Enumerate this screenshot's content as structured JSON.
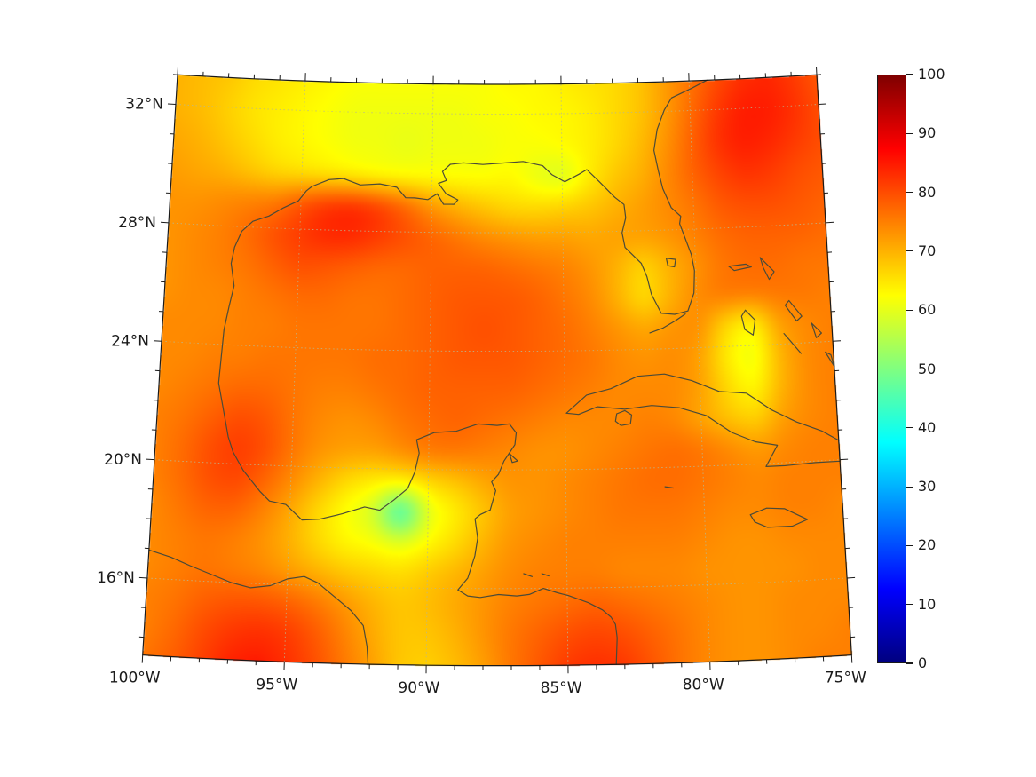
{
  "map": {
    "frame_color": "#1a1a1a",
    "coastline_color": "#4a4a38",
    "graticule_color": "#b8b88f",
    "label_color": "#1a1a1a"
  },
  "chart_data": {
    "type": "heatmap",
    "title": "",
    "region": "Gulf of Mexico and northwest Caribbean",
    "projection": "conic",
    "lon_range": [
      -100,
      -75
    ],
    "lat_range": [
      13.4,
      33.0
    ],
    "x_ticks": {
      "values": [
        -100,
        -95,
        -90,
        -85,
        -80,
        -75
      ],
      "labels": [
        "100°W",
        "95°W",
        "90°W",
        "85°W",
        "80°W",
        "75°W"
      ]
    },
    "y_ticks": {
      "values": [
        16,
        20,
        24,
        28,
        32
      ],
      "labels": [
        "16°N",
        "20°N",
        "24°N",
        "28°N",
        "32°N"
      ]
    },
    "colorbar": {
      "min": 0,
      "max": 100,
      "tick_values": [
        0,
        10,
        20,
        30,
        40,
        50,
        60,
        70,
        80,
        90,
        100
      ],
      "tick_labels": [
        "0",
        "10",
        "20",
        "30",
        "40",
        "50",
        "60",
        "70",
        "80",
        "90",
        "100"
      ],
      "colormap": "jet",
      "stops": [
        [
          "0",
          "#00007f"
        ],
        [
          "0.125",
          "#0000ff"
        ],
        [
          "0.375",
          "#00ffff"
        ],
        [
          "0.5",
          "#80ff80"
        ],
        [
          "0.625",
          "#ffff00"
        ],
        [
          "0.875",
          "#ff0000"
        ],
        [
          "1",
          "#7f0000"
        ]
      ]
    },
    "grid": {
      "cols": 26,
      "rows": 20,
      "lon_min": -100,
      "lon_max": -75,
      "lat_max": 33.0,
      "lat_min": 13.4,
      "values": [
        [
          70,
          69,
          68,
          66,
          65,
          64,
          63,
          62,
          62,
          62,
          62,
          62,
          62,
          63,
          63,
          64,
          65,
          66,
          68,
          72,
          76,
          80,
          83,
          84,
          82,
          79
        ],
        [
          70,
          69,
          67,
          65,
          64,
          63,
          62,
          61,
          61,
          61,
          61,
          61,
          62,
          62,
          63,
          63,
          64,
          66,
          68,
          72,
          77,
          82,
          85,
          85,
          83,
          80
        ],
        [
          71,
          70,
          68,
          66,
          64,
          63,
          62,
          61,
          61,
          60,
          61,
          61,
          61,
          62,
          62,
          63,
          64,
          66,
          69,
          73,
          78,
          83,
          85,
          84,
          82,
          80
        ],
        [
          72,
          71,
          70,
          68,
          66,
          65,
          64,
          63,
          62,
          62,
          62,
          62,
          62,
          63,
          60,
          58,
          64,
          68,
          70,
          74,
          78,
          81,
          83,
          82,
          80,
          79
        ],
        [
          73,
          73,
          74,
          75,
          76,
          80,
          83,
          84,
          82,
          78,
          73,
          70,
          68,
          66,
          66,
          67,
          68,
          70,
          72,
          74,
          76,
          79,
          80,
          80,
          79,
          78
        ],
        [
          73,
          74,
          75,
          77,
          80,
          82,
          84,
          84,
          82,
          80,
          78,
          76,
          74,
          73,
          72,
          72,
          71,
          72,
          72,
          73,
          75,
          77,
          78,
          78,
          78,
          77
        ],
        [
          73,
          74,
          75,
          76,
          78,
          80,
          79,
          78,
          77,
          77,
          78,
          78,
          78,
          77,
          76,
          75,
          73,
          70,
          66,
          70,
          73,
          76,
          77,
          77,
          76,
          76
        ],
        [
          73,
          74,
          74,
          75,
          76,
          77,
          77,
          76,
          76,
          77,
          78,
          79,
          79,
          79,
          78,
          76,
          74,
          70,
          65,
          70,
          74,
          76,
          76,
          76,
          76,
          75
        ],
        [
          74,
          74,
          74,
          75,
          75,
          76,
          76,
          76,
          76,
          77,
          78,
          79,
          80,
          79,
          78,
          77,
          75,
          73,
          71,
          73,
          74,
          66,
          62,
          72,
          74,
          75
        ],
        [
          74,
          74,
          75,
          75,
          76,
          76,
          76,
          76,
          77,
          77,
          78,
          79,
          79,
          79,
          78,
          77,
          76,
          74,
          73,
          74,
          72,
          64,
          60,
          70,
          74,
          75
        ],
        [
          74,
          75,
          76,
          77,
          77,
          76,
          75,
          75,
          76,
          77,
          78,
          78,
          78,
          78,
          77,
          76,
          75,
          74,
          74,
          74,
          72,
          66,
          62,
          70,
          74,
          75
        ],
        [
          75,
          76,
          78,
          80,
          79,
          76,
          74,
          73,
          74,
          76,
          77,
          78,
          77,
          76,
          75,
          74,
          74,
          74,
          75,
          74,
          71,
          68,
          66,
          72,
          74,
          75
        ],
        [
          75,
          77,
          80,
          82,
          80,
          76,
          73,
          72,
          72,
          74,
          76,
          76,
          75,
          74,
          73,
          73,
          74,
          75,
          76,
          77,
          76,
          74,
          72,
          74,
          75,
          75
        ],
        [
          75,
          77,
          80,
          81,
          78,
          74,
          70,
          66,
          64,
          64,
          66,
          68,
          71,
          73,
          73,
          74,
          75,
          76,
          77,
          77,
          76,
          75,
          74,
          75,
          75,
          75
        ],
        [
          74,
          76,
          78,
          78,
          75,
          71,
          66,
          62,
          58,
          40,
          60,
          64,
          68,
          72,
          73,
          74,
          75,
          76,
          76,
          76,
          75,
          74,
          74,
          75,
          75,
          74
        ],
        [
          74,
          75,
          76,
          75,
          73,
          70,
          66,
          63,
          62,
          60,
          63,
          66,
          70,
          73,
          74,
          75,
          75,
          75,
          75,
          75,
          74,
          73,
          73,
          74,
          74,
          74
        ],
        [
          74,
          75,
          76,
          75,
          74,
          72,
          70,
          68,
          67,
          66,
          68,
          70,
          72,
          74,
          75,
          75,
          75,
          74,
          74,
          74,
          73,
          73,
          73,
          73,
          74,
          74
        ],
        [
          75,
          76,
          78,
          79,
          79,
          78,
          76,
          73,
          70,
          68,
          69,
          71,
          73,
          75,
          76,
          77,
          78,
          77,
          76,
          75,
          74,
          73,
          73,
          74,
          74,
          74
        ],
        [
          75,
          77,
          80,
          82,
          83,
          82,
          79,
          75,
          71,
          68,
          68,
          70,
          73,
          76,
          78,
          80,
          81,
          80,
          78,
          76,
          74,
          73,
          73,
          74,
          74,
          75
        ],
        [
          76,
          78,
          81,
          84,
          85,
          83,
          80,
          76,
          72,
          68,
          67,
          69,
          72,
          76,
          79,
          82,
          83,
          82,
          79,
          76,
          74,
          73,
          73,
          74,
          75,
          75
        ]
      ]
    }
  }
}
